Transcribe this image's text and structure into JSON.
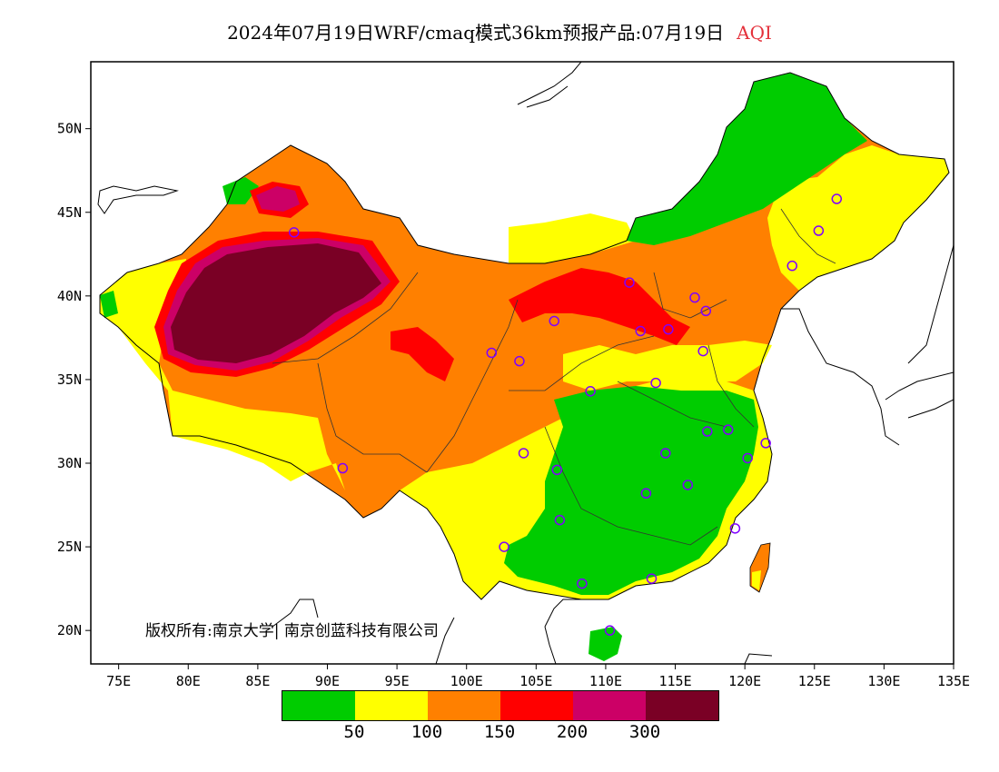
{
  "title": {
    "main": "2024年07月19日WRF/cmaq模式36km预报产品:07月19日",
    "variable": "AQI"
  },
  "axes": {
    "y_ticks": [
      "50N",
      "45N",
      "40N",
      "35N",
      "30N",
      "25N",
      "20N"
    ],
    "x_ticks": [
      "75E",
      "80E",
      "85E",
      "90E",
      "95E",
      "100E",
      "105E",
      "110E",
      "115E",
      "120E",
      "125E",
      "130E",
      "135E"
    ]
  },
  "copyright": "版权所有:南京大学| 南京创蓝科技有限公司",
  "legend": {
    "colors": [
      "#00cc00",
      "#ffff00",
      "#ff8000",
      "#ff0000",
      "#cc0066",
      "#7a0025"
    ],
    "labels": [
      "50",
      "100",
      "150",
      "200",
      "300"
    ]
  },
  "chart_data": {
    "type": "heatmap",
    "title": "2024年07月19日WRF/cmaq模式36km预报产品:07月19日 AQI",
    "xlim": [
      73,
      135
    ],
    "ylim": [
      18,
      54
    ],
    "x_tick_values": [
      75,
      80,
      85,
      90,
      95,
      100,
      105,
      110,
      115,
      120,
      125,
      130,
      135
    ],
    "y_tick_values": [
      50,
      45,
      40,
      35,
      30,
      25,
      20
    ],
    "classes": [
      {
        "range": "0-50",
        "color": "#00cc00"
      },
      {
        "range": "50-100",
        "color": "#ffff00"
      },
      {
        "range": "100-150",
        "color": "#ff8000"
      },
      {
        "range": "150-200",
        "color": "#ff0000"
      },
      {
        "range": "200-300",
        "color": "#cc0066"
      },
      {
        "range": ">300",
        "color": "#7a0025"
      }
    ],
    "station_markers": [
      [
        87.6,
        43.8
      ],
      [
        91.1,
        29.7
      ],
      [
        101.8,
        36.6
      ],
      [
        103.8,
        36.1
      ],
      [
        106.3,
        38.5
      ],
      [
        111.7,
        40.8
      ],
      [
        112.5,
        37.9
      ],
      [
        114.5,
        38.0
      ],
      [
        116.4,
        39.9
      ],
      [
        117.2,
        39.1
      ],
      [
        117.0,
        36.7
      ],
      [
        113.6,
        34.8
      ],
      [
        108.9,
        34.3
      ],
      [
        104.1,
        30.6
      ],
      [
        106.5,
        29.6
      ],
      [
        102.7,
        25.0
      ],
      [
        106.7,
        26.6
      ],
      [
        108.3,
        22.8
      ],
      [
        110.3,
        20.0
      ],
      [
        113.3,
        23.1
      ],
      [
        112.9,
        28.2
      ],
      [
        115.9,
        28.7
      ],
      [
        114.3,
        30.6
      ],
      [
        117.3,
        31.9
      ],
      [
        118.8,
        32.0
      ],
      [
        120.2,
        30.3
      ],
      [
        121.5,
        31.2
      ],
      [
        119.3,
        26.1
      ],
      [
        123.4,
        41.8
      ],
      [
        125.3,
        43.9
      ],
      [
        126.6,
        45.8
      ]
    ]
  }
}
